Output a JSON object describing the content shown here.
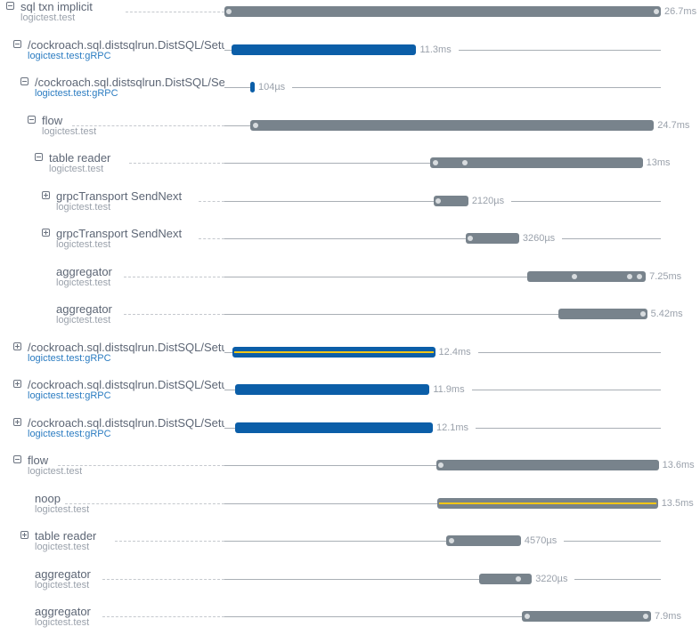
{
  "trace": {
    "total_ms": 26.7,
    "colors": {
      "gray_bar": "#78838c",
      "blue_bar": "#0b5ea8",
      "highlight": "#f2c617"
    },
    "spans": [
      {
        "name": "sql txn implicit",
        "service": "logictest.test",
        "depth": 0,
        "toggle": "collapse",
        "color": "gray",
        "start_ms": 0,
        "duration_ms": 26.7,
        "duration": "26.7ms",
        "logs_ms": [
          0.2,
          26.5
        ]
      },
      {
        "name": "/cockroach.sql.distsqlrun.DistSQL/SetupFlow",
        "service": "logictest.test:gRPC",
        "rpc": true,
        "depth": 1,
        "toggle": "collapse",
        "color": "blue",
        "start_ms": 0.44,
        "duration_ms": 11.3,
        "duration": "11.3ms",
        "logs_ms": []
      },
      {
        "name": "/cockroach.sql.distsqlrun.DistSQL/SetupFlow",
        "service": "logictest.test:gRPC",
        "rpc": true,
        "depth": 2,
        "toggle": "collapse",
        "color": "blue",
        "start_ms": 1.58,
        "duration_ms": 0.104,
        "duration": "104µs",
        "logs_ms": []
      },
      {
        "name": "flow",
        "service": "logictest.test",
        "depth": 3,
        "toggle": "collapse",
        "color": "gray",
        "start_ms": 1.58,
        "duration_ms": 24.7,
        "duration": "24.7ms",
        "logs_ms": [
          1.9
        ]
      },
      {
        "name": "table reader",
        "service": "logictest.test",
        "depth": 4,
        "toggle": "collapse",
        "color": "gray",
        "start_ms": 12.59,
        "duration_ms": 13,
        "duration": "13ms",
        "logs_ms": [
          12.9,
          14.7
        ]
      },
      {
        "name": "grpcTransport SendNext",
        "service": "logictest.test",
        "depth": 5,
        "toggle": "expand",
        "color": "gray",
        "start_ms": 12.8,
        "duration_ms": 2.12,
        "duration": "2120µs",
        "logs_ms": [
          13.0
        ]
      },
      {
        "name": "grpcTransport SendNext",
        "service": "logictest.test",
        "depth": 5,
        "toggle": "expand",
        "color": "gray",
        "start_ms": 14.77,
        "duration_ms": 3.26,
        "duration": "3260µs",
        "logs_ms": [
          15.0
        ]
      },
      {
        "name": "aggregator",
        "service": "logictest.test",
        "depth": 5,
        "toggle": null,
        "color": "gray",
        "start_ms": 18.53,
        "duration_ms": 7.25,
        "duration": "7.25ms",
        "logs_ms": [
          21.4,
          24.8,
          25.4
        ]
      },
      {
        "name": "aggregator",
        "service": "logictest.test",
        "depth": 5,
        "toggle": null,
        "color": "gray",
        "start_ms": 20.44,
        "duration_ms": 5.42,
        "duration": "5.42ms",
        "logs_ms": [
          25.6
        ]
      },
      {
        "name": "/cockroach.sql.distsqlrun.DistSQL/SetupFlow",
        "service": "logictest.test:gRPC",
        "rpc": true,
        "depth": 1,
        "toggle": "expand",
        "color": "blue",
        "highlight": true,
        "start_ms": 0.49,
        "duration_ms": 12.4,
        "duration": "12.4ms",
        "logs_ms": []
      },
      {
        "name": "/cockroach.sql.distsqlrun.DistSQL/SetupFlow",
        "service": "logictest.test:gRPC",
        "rpc": true,
        "depth": 1,
        "toggle": "expand",
        "color": "blue",
        "start_ms": 0.65,
        "duration_ms": 11.9,
        "duration": "11.9ms",
        "logs_ms": []
      },
      {
        "name": "/cockroach.sql.distsqlrun.DistSQL/SetupFlow",
        "service": "logictest.test:gRPC",
        "rpc": true,
        "depth": 1,
        "toggle": "expand",
        "color": "blue",
        "start_ms": 0.65,
        "duration_ms": 12.1,
        "duration": "12.1ms",
        "logs_ms": []
      },
      {
        "name": "flow",
        "service": "logictest.test",
        "depth": 1,
        "toggle": "collapse",
        "color": "gray",
        "start_ms": 12.97,
        "duration_ms": 13.6,
        "duration": "13.6ms",
        "logs_ms": [
          13.2
        ]
      },
      {
        "name": "noop",
        "service": "logictest.test",
        "depth": 2,
        "toggle": null,
        "color": "gray",
        "highlight": true,
        "start_ms": 13.02,
        "duration_ms": 13.5,
        "duration": "13.5ms",
        "logs_ms": []
      },
      {
        "name": "table reader",
        "service": "logictest.test",
        "depth": 2,
        "toggle": "expand",
        "color": "gray",
        "start_ms": 13.57,
        "duration_ms": 4.57,
        "duration": "4570µs",
        "logs_ms": [
          13.9
        ]
      },
      {
        "name": "aggregator",
        "service": "logictest.test",
        "depth": 2,
        "toggle": null,
        "color": "gray",
        "start_ms": 15.59,
        "duration_ms": 3.22,
        "duration": "3220µs",
        "logs_ms": [
          18.0
        ]
      },
      {
        "name": "aggregator",
        "service": "logictest.test",
        "depth": 2,
        "toggle": null,
        "color": "gray",
        "start_ms": 18.2,
        "duration_ms": 7.9,
        "duration": "7.9ms",
        "logs_ms": [
          18.5,
          25.8
        ]
      }
    ]
  }
}
